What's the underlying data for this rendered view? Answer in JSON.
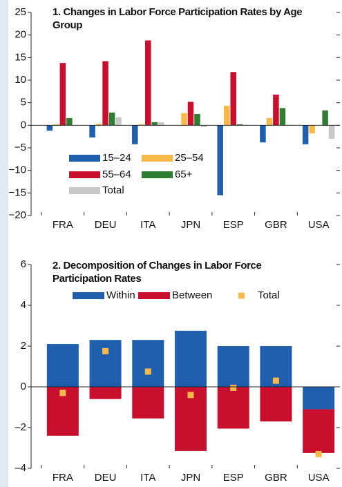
{
  "chart_data": [
    {
      "type": "bar",
      "title": "1. Changes in Labor Force Participation Rates by Age Group",
      "categories": [
        "FRA",
        "DEU",
        "ITA",
        "JPN",
        "ESP",
        "GBR",
        "USA"
      ],
      "series": [
        {
          "name": "15–24",
          "color": "#1f5fad",
          "values": [
            -1.2,
            -2.7,
            -4.2,
            0,
            -15.5,
            -3.8,
            -4.2
          ]
        },
        {
          "name": "25–54",
          "color": "#f7b84a",
          "values": [
            0.2,
            0.3,
            0.2,
            2.7,
            4.3,
            1.6,
            -1.8
          ]
        },
        {
          "name": "55–64",
          "color": "#c8102e",
          "values": [
            13.8,
            14.2,
            18.8,
            5.2,
            11.8,
            6.8,
            0
          ]
        },
        {
          "name": "65+",
          "color": "#2e7d32",
          "values": [
            1.6,
            2.8,
            0.7,
            2.5,
            0.2,
            3.8,
            3.3
          ]
        },
        {
          "name": "Total",
          "color": "#c8c8c8",
          "values": [
            0,
            1.8,
            0.7,
            -0.4,
            0.1,
            0.1,
            -3.0
          ]
        }
      ],
      "ylim": [
        -20,
        25
      ],
      "yticks": [
        {
          "value": -20,
          "label": "−20"
        },
        {
          "value": -15,
          "label": "−15"
        },
        {
          "value": -10,
          "label": "−10"
        },
        {
          "value": -5,
          "label": "−5"
        },
        0,
        5,
        10,
        15,
        20,
        25
      ]
    },
    {
      "type": "stacked_bar",
      "title": "2. Decomposition of Changes in Labor Force Participation Rates",
      "categories": [
        "FRA",
        "DEU",
        "ITA",
        "JPN",
        "ESP",
        "GBR",
        "USA"
      ],
      "series": [
        {
          "name": "Within",
          "color": "#1f5fad",
          "values": [
            2.1,
            2.3,
            2.3,
            2.75,
            2.0,
            2.0,
            -1.1
          ]
        },
        {
          "name": "Between",
          "color": "#c8102e",
          "values": [
            -2.4,
            -0.6,
            -1.55,
            -3.15,
            -2.05,
            -1.7,
            -2.15
          ]
        },
        {
          "name": "Total",
          "color": "#f7b84a",
          "marker": "square",
          "values": [
            -0.3,
            1.75,
            0.75,
            -0.4,
            -0.05,
            0.3,
            -3.3
          ]
        }
      ],
      "ylim": [
        -4,
        6
      ],
      "yticks": [
        {
          "value": -4,
          "label": "–4"
        },
        {
          "value": -2,
          "label": "–2"
        },
        0,
        2,
        4,
        6
      ]
    }
  ]
}
